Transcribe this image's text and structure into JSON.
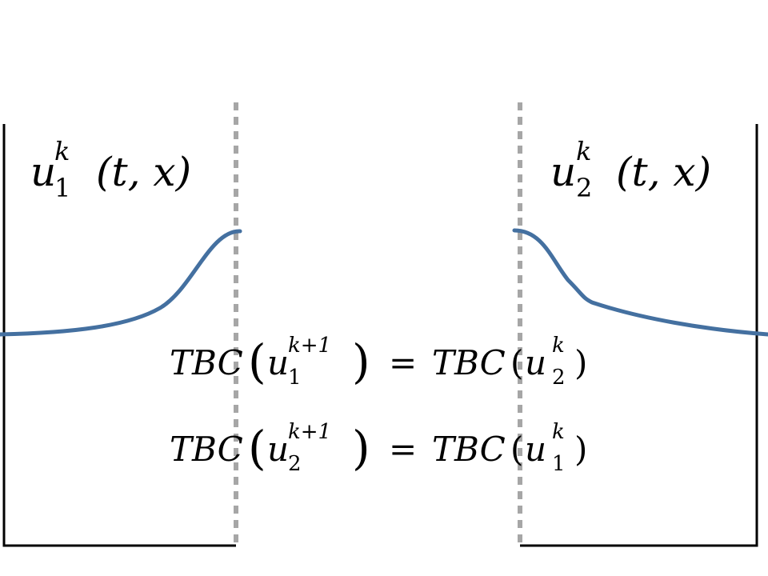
{
  "colors": {
    "curve": "#4470a0",
    "interface": "#a6a6a6",
    "boundary": "#000000"
  },
  "labels": {
    "u1": {
      "base": "u",
      "sup": "k",
      "sub": "1",
      "args": "(t, x)"
    },
    "u2": {
      "base": "u",
      "sup": "k",
      "sub": "2",
      "args": "(t, x)"
    }
  },
  "equations": [
    {
      "lhs_op": "TBC",
      "lhs_base": "u",
      "lhs_sup": "k+1",
      "lhs_sub": "1",
      "eq": "=",
      "rhs_op": "TBC",
      "rhs_base": "u",
      "rhs_sup": "k",
      "rhs_sub": "2"
    },
    {
      "lhs_op": "TBC",
      "lhs_base": "u",
      "lhs_sup": "k+1",
      "lhs_sub": "2",
      "eq": "=",
      "rhs_op": "TBC",
      "rhs_base": "u",
      "rhs_sup": "k",
      "rhs_sub": "1"
    }
  ]
}
